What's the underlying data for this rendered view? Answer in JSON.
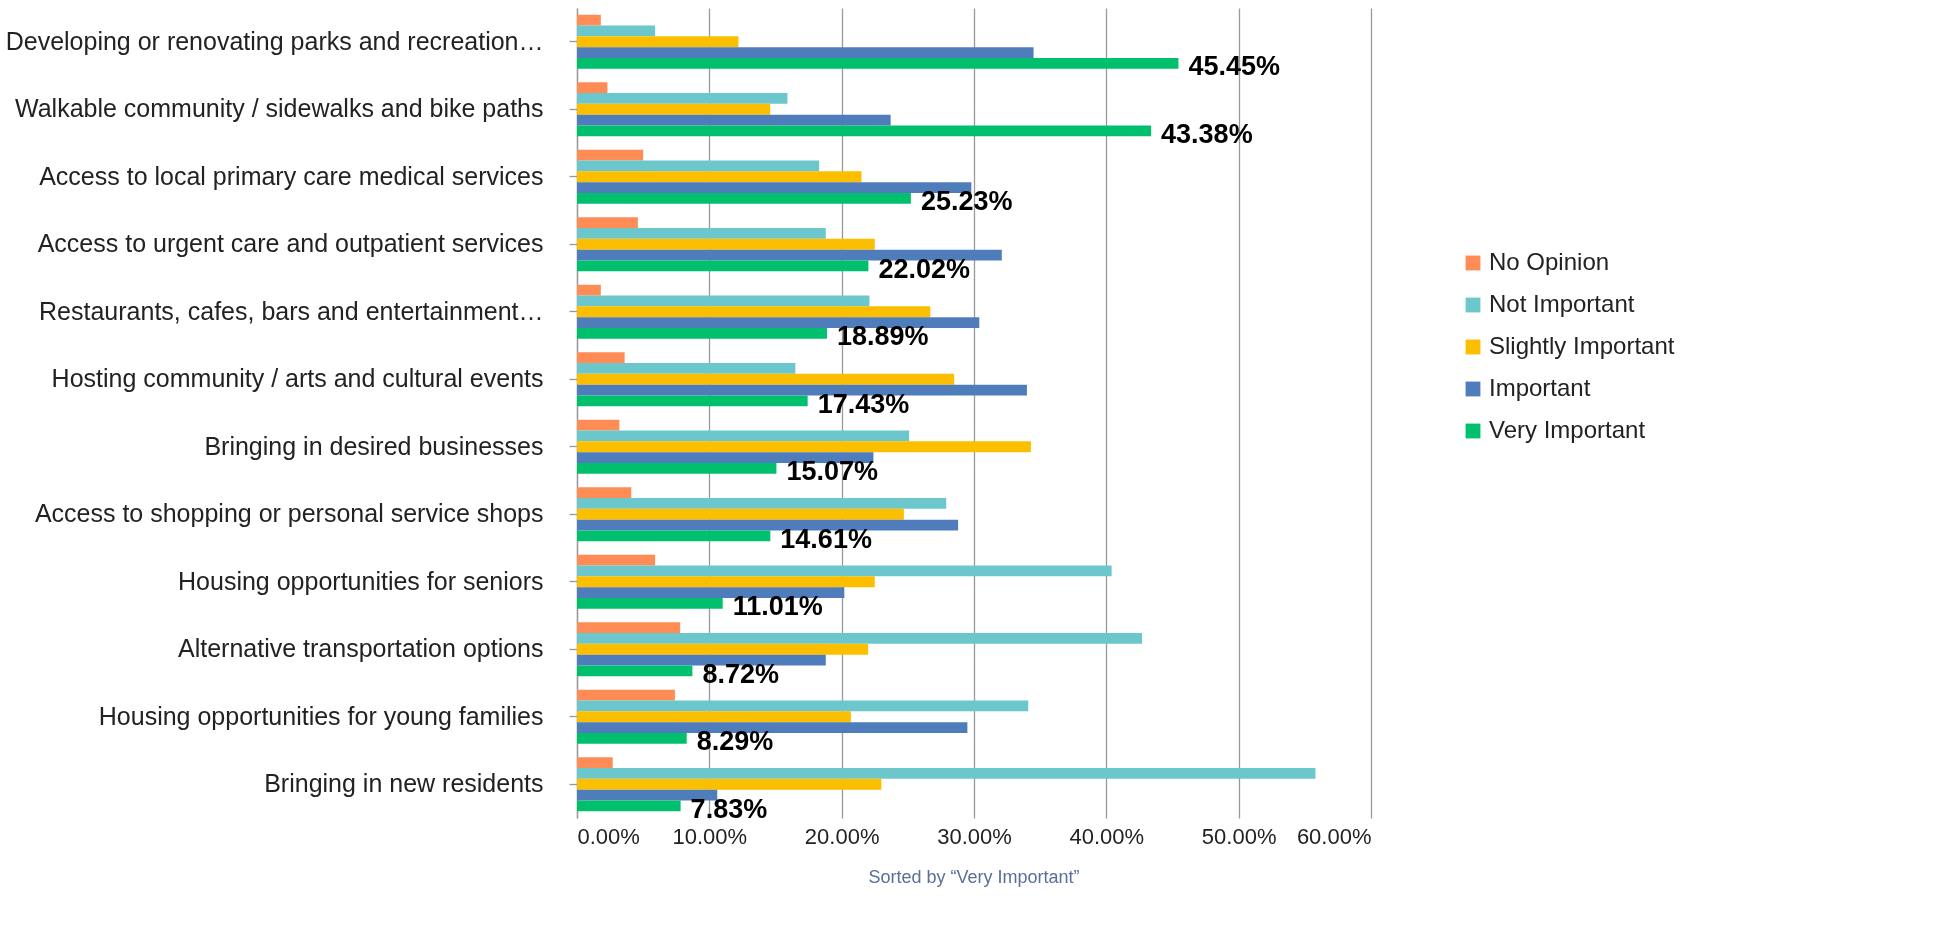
{
  "chart_data": {
    "type": "bar",
    "orientation": "horizontal",
    "categories": [
      "Developing or renovating parks and recreation…",
      "Walkable community / sidewalks and bike paths",
      "Access to local primary care medical services",
      "Access to urgent care and outpatient services",
      "Restaurants, cafes, bars and entertainment…",
      "Hosting community / arts and cultural events",
      "Bringing in desired businesses",
      "Access to shopping or personal service shops",
      "Housing opportunities for seniors",
      "Alternative transportation options",
      "Housing opportunities for young families",
      "Bringing in new residents"
    ],
    "series": [
      {
        "name": "No Opinion",
        "color": "#ff8c55",
        "values": [
          1.8,
          2.3,
          5.0,
          4.6,
          1.8,
          3.6,
          3.2,
          4.1,
          5.9,
          7.8,
          7.4,
          2.7
        ]
      },
      {
        "name": "Not Important",
        "color": "#6bc7cc",
        "values": [
          5.9,
          15.9,
          18.3,
          18.8,
          22.1,
          16.5,
          25.1,
          27.9,
          40.4,
          42.7,
          34.1,
          55.8
        ]
      },
      {
        "name": "Slightly Important",
        "color": "#fbbf00",
        "values": [
          12.2,
          14.6,
          21.5,
          22.5,
          26.7,
          28.5,
          34.3,
          24.7,
          22.5,
          22.0,
          20.7,
          23.0
        ]
      },
      {
        "name": "Important",
        "color": "#4f7cba",
        "values": [
          34.5,
          23.7,
          29.8,
          32.1,
          30.4,
          34.0,
          22.4,
          28.8,
          20.2,
          18.8,
          29.5,
          10.6
        ]
      },
      {
        "name": "Very Important",
        "color": "#00c06e",
        "values": [
          45.45,
          43.38,
          25.23,
          22.02,
          18.89,
          17.43,
          15.07,
          14.61,
          11.01,
          8.72,
          8.29,
          7.83
        ],
        "value_labels": [
          "45.45%",
          "43.38%",
          "25.23%",
          "22.02%",
          "18.89%",
          "17.43%",
          "15.07%",
          "14.61%",
          "11.01%",
          "8.72%",
          "8.29%",
          "7.83%"
        ]
      }
    ],
    "xlim": [
      0,
      60
    ],
    "xticks": [
      {
        "value": 0,
        "label": "0.00%"
      },
      {
        "value": 10,
        "label": "10.00%"
      },
      {
        "value": 20,
        "label": "20.00%"
      },
      {
        "value": 30,
        "label": "30.00%"
      },
      {
        "value": 40,
        "label": "40.00%"
      },
      {
        "value": 50,
        "label": "50.00%"
      },
      {
        "value": 60,
        "label": "60.00%"
      }
    ],
    "grid": "x",
    "legend": "right",
    "annotations": [
      "Sorted by “Very Important”"
    ]
  }
}
